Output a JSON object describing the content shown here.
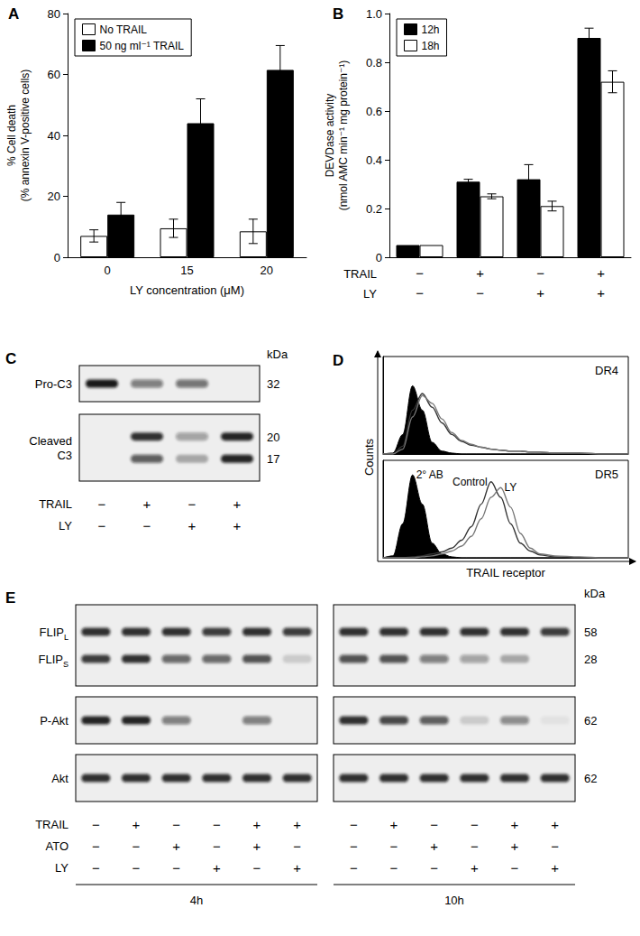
{
  "chart_data": [
    {
      "title": "A",
      "type": "bar",
      "categories": [
        "0",
        "15",
        "20"
      ],
      "xlabel": "LY concentration (μM)",
      "ylabel": "% Cell death\n(% annexin V-positive cells)",
      "ylim": [
        0,
        80
      ],
      "yticks": [
        0,
        20,
        40,
        60,
        80
      ],
      "grid": false,
      "legend": "top-left",
      "series": [
        {
          "name": "No TRAIL",
          "color": "#ffffff",
          "values": [
            7,
            9.5,
            8.5
          ],
          "errors": [
            2,
            3,
            4
          ]
        },
        {
          "name": "50 ng ml⁻¹ TRAIL",
          "color": "#000000",
          "values": [
            14,
            44,
            61.5
          ],
          "errors": [
            4,
            8,
            8
          ]
        }
      ]
    },
    {
      "title": "B",
      "type": "bar",
      "categories": [
        null,
        null,
        null,
        null
      ],
      "ylabel": "DEVDase activity\n(nmol AMC min⁻¹ mg protein⁻¹)",
      "ylim": [
        0,
        1
      ],
      "yticks": [
        0,
        0.2,
        0.4,
        0.6,
        0.8,
        {
          "value": 1,
          "label": "1.0"
        }
      ],
      "grid": false,
      "legend": "top-left",
      "series": [
        {
          "name": "12h",
          "color": "#000000",
          "values": [
            0.05,
            0.31,
            0.32,
            0.9
          ],
          "errors": [
            0,
            0.01,
            0.06,
            0.04
          ]
        },
        {
          "name": "18h",
          "color": "#ffffff",
          "values": [
            0.05,
            0.25,
            0.21,
            0.72
          ],
          "errors": [
            0,
            0.01,
            0.02,
            0.045
          ]
        }
      ],
      "conditions": [
        {
          "label": "TRAIL",
          "marks": [
            "−",
            "+",
            "−",
            "+"
          ]
        },
        {
          "label": "LY",
          "marks": [
            "−",
            "−",
            "+",
            "+"
          ]
        }
      ]
    },
    {
      "title": "D",
      "type": "line",
      "xlabel": "TRAIL receptor",
      "ylabel": "Counts",
      "tick_labels": false,
      "grid": false,
      "xlim": [
        0,
        100
      ],
      "ylim": [
        0,
        100
      ],
      "x": [
        0,
        4,
        8,
        12,
        16,
        20,
        24,
        28,
        32,
        36,
        40,
        44,
        48,
        52,
        56,
        60,
        64,
        70,
        80,
        90,
        100
      ],
      "subplots": [
        {
          "title": "DR4",
          "series": [
            {
              "type": "area",
              "color": "#000000",
              "values": [
                0,
                1,
                20,
                70,
                45,
                12,
                3,
                1,
                0,
                0,
                0,
                0,
                0,
                0,
                0,
                0,
                0,
                0,
                0,
                0,
                0
              ]
            },
            {
              "type": "line",
              "color": "#333333",
              "values": [
                0,
                0,
                8,
                45,
                62,
                48,
                32,
                20,
                13,
                9,
                7,
                5,
                4,
                3,
                3,
                2,
                2,
                1,
                1,
                0,
                0
              ]
            },
            {
              "type": "line",
              "color": "#777777",
              "values": [
                0,
                0,
                5,
                38,
                60,
                52,
                36,
                22,
                14,
                10,
                7,
                5,
                4,
                3,
                3,
                2,
                2,
                1,
                1,
                0,
                0
              ]
            }
          ]
        },
        {
          "title": "DR5",
          "series": [
            {
              "name": "2° AB",
              "type": "area",
              "color": "#000000",
              "values": [
                0,
                2,
                35,
                85,
                55,
                15,
                4,
                1,
                0,
                0,
                0,
                0,
                0,
                0,
                0,
                0,
                0,
                0,
                0,
                0,
                0
              ]
            },
            {
              "name": "Control",
              "type": "line",
              "color": "#333333",
              "values": [
                0,
                0,
                0,
                1,
                2,
                4,
                6,
                10,
                18,
                32,
                55,
                78,
                62,
                35,
                15,
                7,
                3,
                1,
                0,
                0,
                0
              ]
            },
            {
              "name": "LY",
              "type": "line",
              "color": "#777777",
              "values": [
                0,
                0,
                0,
                0,
                1,
                2,
                4,
                7,
                12,
                22,
                40,
                62,
                72,
                52,
                25,
                10,
                4,
                2,
                1,
                0,
                0
              ]
            }
          ]
        }
      ]
    }
  ],
  "blots": [
    {
      "title": "C",
      "unit": "kDa",
      "conditions": [
        "TRAIL",
        "LY"
      ],
      "boxes": [
        {
          "label": "Pro-C3",
          "bands": [
            {
              "kda": 32
            }
          ]
        },
        {
          "label": "Cleaved\nC3",
          "bands": [
            {
              "kda": 20
            },
            {
              "kda": 17
            }
          ]
        }
      ],
      "groups": [
        {
          "marks": [
            [
              "−",
              "+",
              "−",
              "+"
            ],
            [
              "−",
              "−",
              "+",
              "+"
            ]
          ],
          "intensity": [
            [
              [
                0.95,
                0.5,
                0.55,
                0
              ]
            ],
            [
              [
                0,
                0.85,
                0.35,
                0.9
              ],
              [
                0,
                0.65,
                0.3,
                0.9
              ]
            ]
          ]
        }
      ]
    },
    {
      "title": "E",
      "unit": "kDa",
      "conditions": [
        "TRAIL",
        "ATO",
        "LY"
      ],
      "boxes": [
        {
          "bands": [
            {
              "label": "FLIP",
              "sub": "L",
              "kda": 58
            },
            {
              "label": "FLIP",
              "sub": "S",
              "kda": 28
            }
          ]
        },
        {
          "bands": [
            {
              "label": "P-Akt",
              "kda": 62
            }
          ]
        },
        {
          "bands": [
            {
              "label": "Akt",
              "kda": 62
            }
          ]
        }
      ],
      "groups": [
        {
          "label": "4h",
          "marks": [
            [
              "−",
              "+",
              "−",
              "−",
              "+",
              "+"
            ],
            [
              "−",
              "−",
              "+",
              "−",
              "+",
              "−"
            ],
            [
              "−",
              "−",
              "−",
              "+",
              "−",
              "+"
            ]
          ],
          "intensity": [
            [
              [
                0.85,
                0.85,
                0.85,
                0.8,
                0.85,
                0.8
              ],
              [
                0.8,
                0.85,
                0.6,
                0.6,
                0.7,
                0.15
              ]
            ],
            [
              [
                0.9,
                0.9,
                0.5,
                0,
                0.5,
                0
              ]
            ],
            [
              [
                0.85,
                0.85,
                0.85,
                0.85,
                0.85,
                0.85
              ]
            ]
          ]
        },
        {
          "label": "10h",
          "marks": [
            [
              "−",
              "+",
              "−",
              "−",
              "+",
              "+"
            ],
            [
              "−",
              "−",
              "+",
              "−",
              "+",
              "−"
            ],
            [
              "−",
              "−",
              "−",
              "+",
              "−",
              "+"
            ]
          ],
          "intensity": [
            [
              [
                0.85,
                0.85,
                0.85,
                0.85,
                0.85,
                0.8
              ],
              [
                0.7,
                0.7,
                0.5,
                0.35,
                0.3,
                0
              ]
            ],
            [
              [
                0.85,
                0.75,
                0.65,
                0.15,
                0.45,
                0.05
              ]
            ],
            [
              [
                0.85,
                0.85,
                0.85,
                0.85,
                0.85,
                0.85
              ]
            ]
          ]
        }
      ]
    }
  ]
}
